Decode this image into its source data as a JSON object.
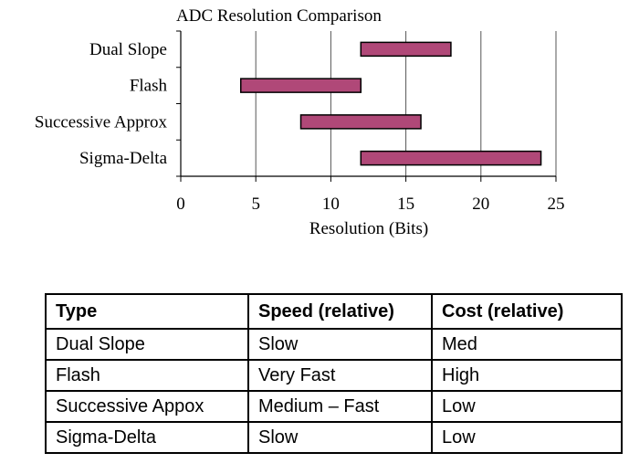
{
  "chart_data": {
    "type": "bar",
    "orientation": "horizontal-range",
    "title": "ADC Resolution Comparison",
    "xlabel": "Resolution (Bits)",
    "ylabel": "",
    "xlim": [
      0,
      25
    ],
    "xticks": [
      0,
      5,
      10,
      15,
      20,
      25
    ],
    "grid": true,
    "categories": [
      "Dual Slope",
      "Flash",
      "Successive Approx",
      "Sigma-Delta"
    ],
    "ranges": [
      {
        "category": "Dual Slope",
        "start": 12,
        "end": 18
      },
      {
        "category": "Flash",
        "start": 4,
        "end": 12
      },
      {
        "category": "Successive Approx",
        "start": 8,
        "end": 16
      },
      {
        "category": "Sigma-Delta",
        "start": 12,
        "end": 24
      }
    ],
    "bar_color": "#b04878",
    "bar_border_color": "#000000"
  },
  "table": {
    "headers": [
      "Type",
      "Speed (relative)",
      "Cost (relative)"
    ],
    "rows": [
      [
        "Dual Slope",
        "Slow",
        "Med"
      ],
      [
        "Flash",
        "Very Fast",
        "High"
      ],
      [
        "Successive Appox",
        "Medium – Fast",
        "Low"
      ],
      [
        "Sigma-Delta",
        "Slow",
        "Low"
      ]
    ]
  }
}
